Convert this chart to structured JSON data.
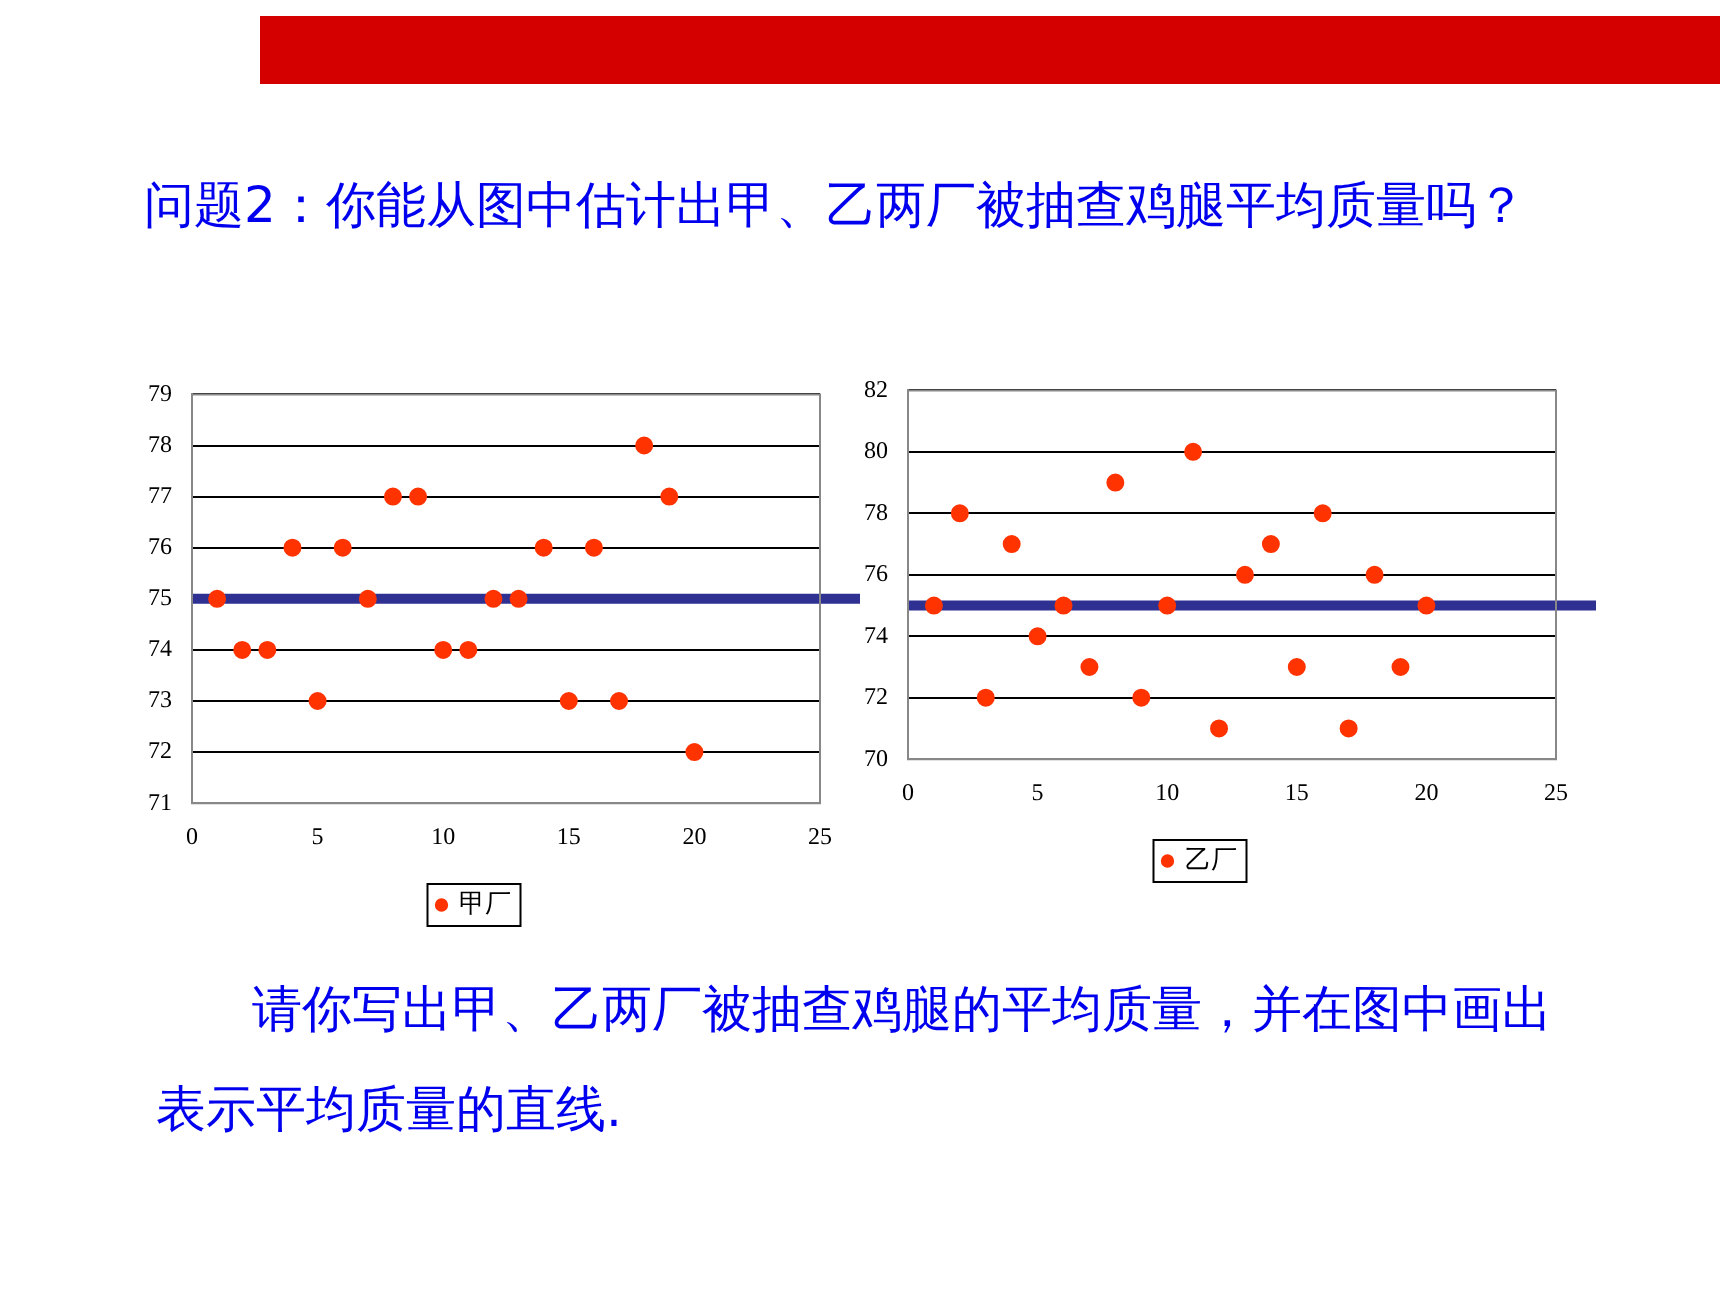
{
  "chart_data": [
    {
      "type": "scatter",
      "title": "问题2：你能从图中估计出甲、乙两厂被抽查鸡腿平均质量吗？",
      "x": [
        1,
        2,
        3,
        4,
        5,
        6,
        7,
        8,
        9,
        10,
        11,
        12,
        13,
        14,
        15,
        16,
        17,
        18,
        19,
        20
      ],
      "series": [
        {
          "name": "甲厂",
          "color": "#ff3300",
          "values": [
            75,
            74,
            74,
            76,
            73,
            76,
            75,
            77,
            77,
            74,
            74,
            75,
            75,
            76,
            73,
            76,
            73,
            78,
            77,
            72
          ]
        }
      ],
      "xlim": [
        0,
        25
      ],
      "xticks": [
        0,
        5,
        10,
        15,
        20,
        25
      ],
      "ylim": [
        71,
        79
      ],
      "yticks": [
        71,
        72,
        73,
        74,
        75,
        76,
        77,
        78,
        79
      ],
      "grid": "y",
      "legend": "bottom",
      "marker": "circle",
      "ref_lines": [
        {
          "axis": "y",
          "value": 75,
          "color": "#2e3192"
        }
      ]
    },
    {
      "type": "scatter",
      "x": [
        1,
        2,
        3,
        4,
        5,
        6,
        7,
        8,
        9,
        10,
        11,
        12,
        13,
        14,
        15,
        16,
        17,
        18,
        19,
        20
      ],
      "series": [
        {
          "name": "乙厂",
          "color": "#ff3300",
          "values": [
            75,
            78,
            72,
            77,
            74,
            75,
            73,
            79,
            72,
            75,
            80,
            71,
            76,
            77,
            73,
            78,
            71,
            76,
            73,
            75
          ]
        }
      ],
      "xlim": [
        0,
        25
      ],
      "xticks": [
        0,
        5,
        10,
        15,
        20,
        25
      ],
      "ylim": [
        70,
        82
      ],
      "yticks": [
        70,
        72,
        74,
        76,
        78,
        80,
        82
      ],
      "grid": "y",
      "legend": "bottom",
      "marker": "circle",
      "ref_lines": [
        {
          "axis": "y",
          "value": 75,
          "color": "#2e3192"
        }
      ],
      "annotations": [
        "请你写出甲、乙两厂被抽查鸡腿的平均质量，并在图中画出表示平均质量的直线."
      ]
    }
  ]
}
